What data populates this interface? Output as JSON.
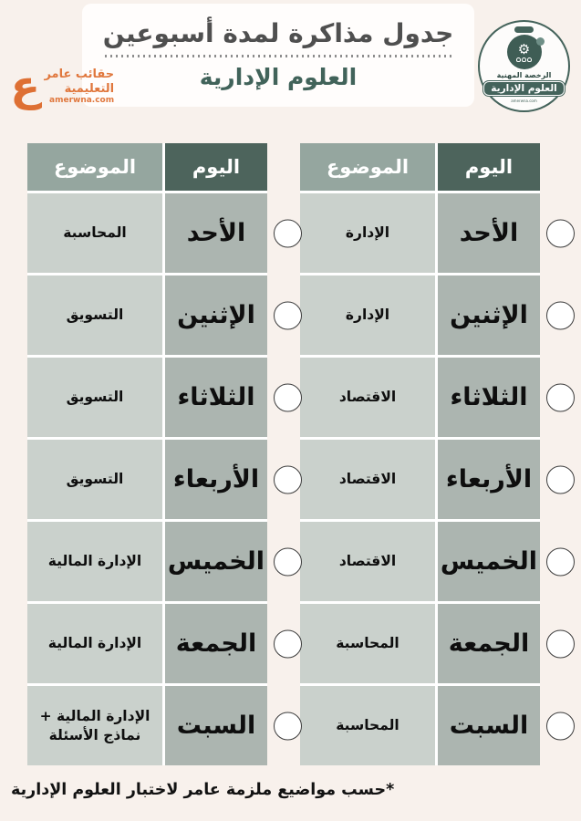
{
  "page": {
    "title": "جدول مذاكرة لمدة أسبوعين",
    "subject": "العلوم الإدارية",
    "footnote": "*حسب مواضيع ملزمة عامر لاختبار العلوم الإدارية"
  },
  "logo": {
    "glyph": "ع",
    "name_line1": "حقائب عامر",
    "name_line2": "التعليمية",
    "site": "amerwna.com"
  },
  "badge": {
    "license": "الرخصة المهنية",
    "banner": "العلوم الإدارية",
    "site": "amerwna.com",
    "gear_icon": "⚙"
  },
  "table_headers": {
    "day": "اليوم",
    "subject": "الموضوع"
  },
  "week1": {
    "rows": [
      {
        "day": "الأحد",
        "subject": "الإدارة"
      },
      {
        "day": "الإثنين",
        "subject": "الإدارة"
      },
      {
        "day": "الثلاثاء",
        "subject": "الاقتصاد"
      },
      {
        "day": "الأربعاء",
        "subject": "الاقتصاد"
      },
      {
        "day": "الخميس",
        "subject": "الاقتصاد"
      },
      {
        "day": "الجمعة",
        "subject": "المحاسبة"
      },
      {
        "day": "السبت",
        "subject": "المحاسبة"
      }
    ]
  },
  "week2": {
    "rows": [
      {
        "day": "الأحد",
        "subject": "المحاسبة"
      },
      {
        "day": "الإثنين",
        "subject": "التسويق"
      },
      {
        "day": "الثلاثاء",
        "subject": "التسويق"
      },
      {
        "day": "الأربعاء",
        "subject": "التسويق"
      },
      {
        "day": "الخميس",
        "subject": "الإدارة المالية"
      },
      {
        "day": "الجمعة",
        "subject": "الإدارة المالية"
      },
      {
        "day": "السبت",
        "subject": "الإدارة المالية + نماذج الأسئلة"
      }
    ]
  },
  "colors": {
    "background": "#f8f1ec",
    "day_header": "#4d645c",
    "subject_header": "#95a69f",
    "day_cell": "#acb5b0",
    "subject_cell": "#cad1cc",
    "accent_green": "#41635a",
    "brand_orange": "#e0773d",
    "title_gray": "#4f4f4f"
  }
}
